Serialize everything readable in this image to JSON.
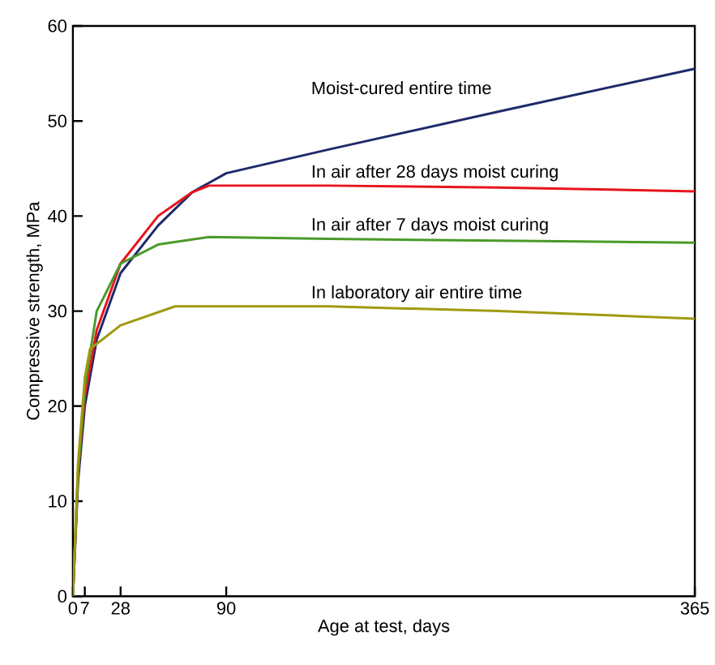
{
  "chart_data": {
    "type": "line",
    "xlabel": "Age at test, days",
    "ylabel": "Compressive strength, MPa",
    "xlim": [
      0,
      365
    ],
    "ylim": [
      0,
      60
    ],
    "xticks": [
      0,
      7,
      28,
      90,
      365
    ],
    "yticks": [
      0,
      10,
      20,
      30,
      40,
      50,
      60
    ],
    "legend": false,
    "grid": false,
    "series": [
      {
        "name": "Moist-cured entire time",
        "color": "#1f2a6b",
        "x": [
          0,
          3,
          7,
          14,
          28,
          50,
          70,
          90,
          150,
          250,
          365
        ],
        "values": [
          0,
          12,
          20,
          27,
          34,
          39,
          42.5,
          44.5,
          47,
          51,
          55.5
        ]
      },
      {
        "name": "In air after 28 days moist curing",
        "color": "#e8141c",
        "x": [
          0,
          3,
          7,
          14,
          28,
          50,
          70,
          80,
          150,
          250,
          365
        ],
        "values": [
          0,
          13,
          21,
          28,
          35,
          40,
          42.5,
          43.2,
          43.2,
          43,
          42.6
        ]
      },
      {
        "name": "In air after 7 days moist curing",
        "color": "#4a9a2a",
        "x": [
          0,
          3,
          7,
          14,
          28,
          50,
          80,
          150,
          250,
          365
        ],
        "values": [
          0,
          13,
          22,
          30,
          35,
          37,
          37.8,
          37.6,
          37.4,
          37.2
        ]
      },
      {
        "name": "In laboratory air entire time",
        "color": "#a09a10",
        "x": [
          0,
          3,
          7,
          10,
          28,
          60,
          150,
          250,
          365
        ],
        "values": [
          0,
          14,
          23,
          26,
          28.5,
          30.5,
          30.5,
          30,
          29.2
        ]
      }
    ]
  }
}
